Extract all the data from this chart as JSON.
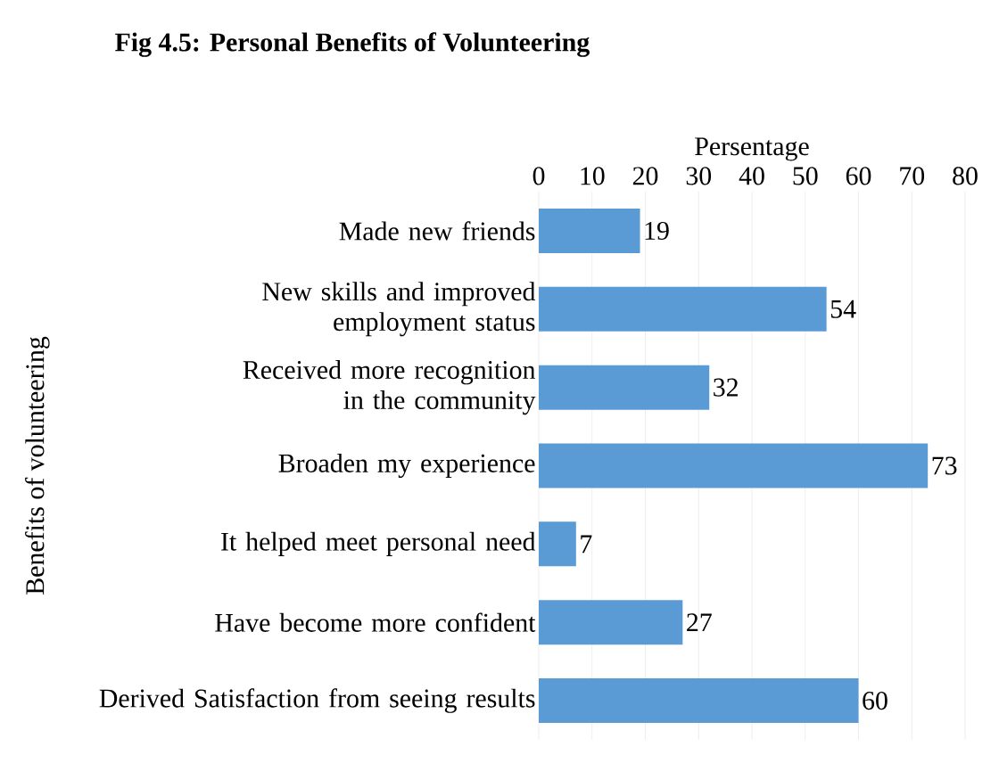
{
  "chart_data": {
    "type": "bar",
    "orientation": "horizontal",
    "title": "Fig 4.5:        Personal Benefits of Volunteering",
    "xlabel": "Persentage",
    "ylabel": "Benefits of volunteering",
    "categories": [
      "Made new friends",
      "New skills and improved employment status",
      "Received more recognition in the community",
      "Broaden my experience",
      "It helped meet personal need",
      "Have become more confident",
      "Derived Satisfaction from seeing results"
    ],
    "values": [
      19,
      54,
      32,
      73,
      7,
      27,
      60
    ],
    "color": "#5b9bd5",
    "data_labels": true,
    "xlim": [
      0,
      80
    ],
    "xticks": [
      0,
      10,
      20,
      30,
      40,
      50,
      60,
      70,
      80
    ],
    "grid": "x"
  }
}
